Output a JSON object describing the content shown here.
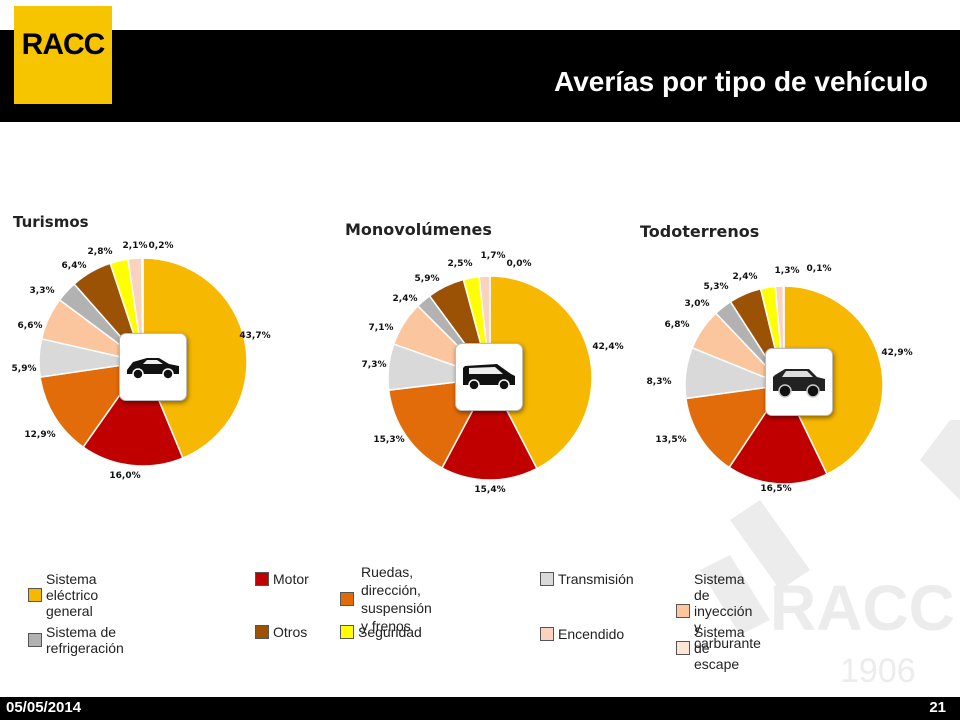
{
  "header": {
    "logo_text": "RACC",
    "title": "Averías por tipo de vehículo"
  },
  "watermark": {
    "brand": "RACC",
    "year": "1906"
  },
  "footer": {
    "date": "05/05/2014",
    "page": "21"
  },
  "legend": {
    "colors": [
      "#f6b800",
      "#c00000",
      "#e36c0a",
      "#d9d9d9",
      "#fbc59d",
      "#b2b2b2",
      "#9c5204",
      "#ffff00",
      "#fad3be",
      "#fbe5d6"
    ],
    "items": [
      {
        "label": "Sistema eléctrico general",
        "color": "#f6b800"
      },
      {
        "label": "Motor",
        "color": "#c00000"
      },
      {
        "label_line1": "Ruedas, dirección,",
        "label_line2": "suspensión y frenos",
        "color": "#e36c0a"
      },
      {
        "label": "Transmisión",
        "color": "#d9d9d9"
      },
      {
        "label": "Sistema de inyección y carburante",
        "color": "#fbc59d"
      },
      {
        "label": "Sistema de refrigeración",
        "color": "#b2b2b2"
      },
      {
        "label": "Otros",
        "color": "#9c5204"
      },
      {
        "label": "Seguridad",
        "color": "#ffff00"
      },
      {
        "label": "Encendido",
        "color": "#fad3be"
      },
      {
        "label": "Sistema de escape",
        "color": "#fbe5d6"
      }
    ]
  },
  "chart_data": [
    {
      "type": "pie",
      "title": "Turismos",
      "icon": "car-icon",
      "values": [
        43.7,
        16.0,
        12.9,
        5.9,
        6.6,
        3.3,
        6.4,
        2.8,
        2.1,
        0.2
      ],
      "labels": [
        "43,7%",
        "16,0%",
        "12,9%",
        "5,9%",
        "6,6%",
        "3,3%",
        "6,4%",
        "2,8%",
        "2,1%",
        "0,2%"
      ]
    },
    {
      "type": "pie",
      "title": "Monovolúmenes",
      "icon": "van-icon",
      "values": [
        42.4,
        15.4,
        15.3,
        7.3,
        7.1,
        2.4,
        5.9,
        2.5,
        1.7,
        0.0
      ],
      "labels": [
        "42,4%",
        "15,4%",
        "15,3%",
        "7,3%",
        "7,1%",
        "2,4%",
        "5,9%",
        "2,5%",
        "1,7%",
        "0,0%"
      ]
    },
    {
      "type": "pie",
      "title": "Todoterrenos",
      "icon": "suv-icon",
      "values": [
        42.9,
        16.5,
        13.5,
        8.3,
        6.8,
        3.0,
        5.3,
        2.4,
        1.3,
        0.1
      ],
      "labels": [
        "42,9%",
        "16,5%",
        "13,5%",
        "8,3%",
        "6,8%",
        "3,0%",
        "5,3%",
        "2,4%",
        "1,3%",
        "0,1%"
      ]
    }
  ]
}
